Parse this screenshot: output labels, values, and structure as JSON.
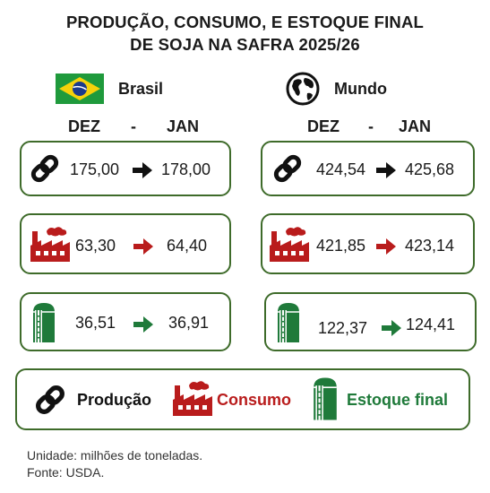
{
  "title": {
    "line1": "PRODUÇÃO, CONSUMO, E ESTOQUE FINAL",
    "line2": "DE SOJA NA SAFRA 2025/26"
  },
  "regions": [
    {
      "label": "Brasil",
      "icon": "brazil-flag-icon"
    },
    {
      "label": "Mundo",
      "icon": "globe-icon"
    }
  ],
  "columns": {
    "from": "DEZ",
    "sep": "-",
    "to": "JAN"
  },
  "rows": {
    "producao": {
      "brasil": [
        "175,00",
        "178,00"
      ],
      "mundo": [
        "424,54",
        "425,68"
      ],
      "icon": "chain-link-icon",
      "arrow_color": "#111111"
    },
    "consumo": {
      "brasil": [
        "63,30",
        "64,40"
      ],
      "mundo": [
        "421,85",
        "423,14"
      ],
      "icon": "factory-icon",
      "arrow_color": "#b91c1c"
    },
    "estoque": {
      "brasil": [
        "36,51",
        "36,91"
      ],
      "mundo": [
        "122,37",
        "124,41"
      ],
      "icon": "silo-icon",
      "arrow_color": "#1f7a3a"
    }
  },
  "legend": [
    {
      "label": "Produção",
      "color": "#111111",
      "icon": "chain-link-icon"
    },
    {
      "label": "Consumo",
      "color": "#b91c1c",
      "icon": "factory-icon"
    },
    {
      "label": "Estoque final",
      "color": "#1f7a3a",
      "icon": "silo-icon"
    }
  ],
  "footer": {
    "unit": "Unidade: milhões de toneladas.",
    "source": "Fonte: USDA."
  },
  "colors": {
    "border": "#3e6b2a",
    "red": "#b91c1c",
    "green": "#1f7a3a"
  }
}
